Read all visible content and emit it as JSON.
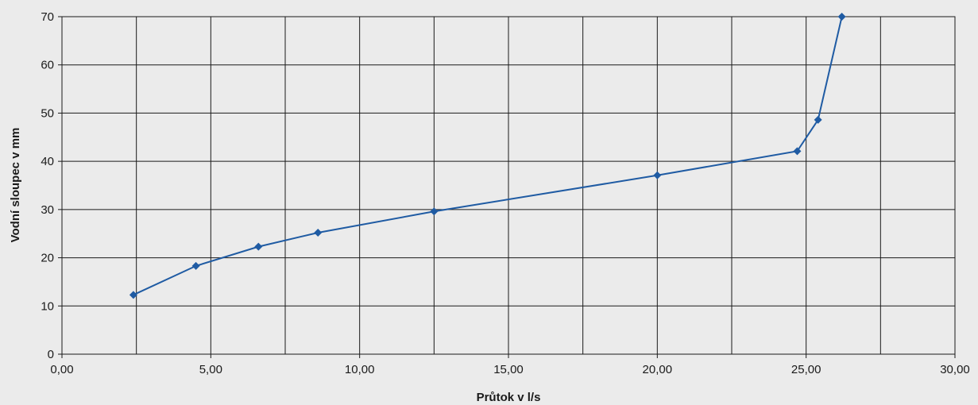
{
  "chart_data": {
    "type": "line",
    "title": "",
    "xlabel": "Průtok v l/s",
    "ylabel": "Vodní sloupec v mm",
    "xlim": [
      0,
      30
    ],
    "ylim": [
      0,
      70
    ],
    "x_ticks": [
      "0,00",
      "5,00",
      "10,00",
      "15,00",
      "20,00",
      "25,00",
      "30,00"
    ],
    "y_ticks": [
      "0",
      "10",
      "20",
      "30",
      "40",
      "50",
      "60",
      "70"
    ],
    "grid": true,
    "legend": "none",
    "series": [
      {
        "color": "#1f5ba3",
        "marker": "diamond",
        "x": [
          2.4,
          4.5,
          6.6,
          8.6,
          12.5,
          20.0,
          24.7,
          25.4,
          26.2
        ],
        "y": [
          12.3,
          18.3,
          22.3,
          25.2,
          29.6,
          37.1,
          42.1,
          48.6,
          70.0
        ]
      }
    ]
  }
}
